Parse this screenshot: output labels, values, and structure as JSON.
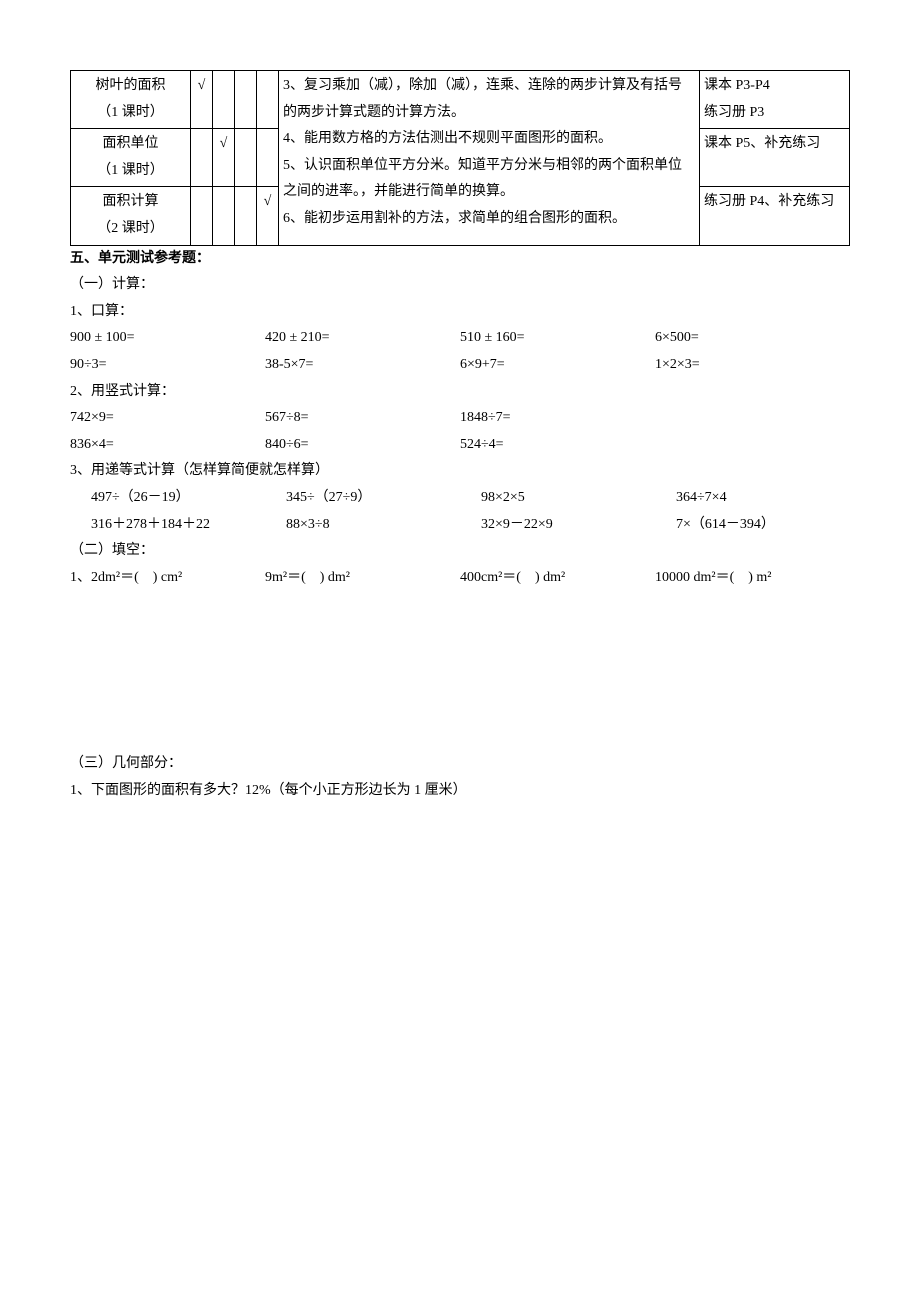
{
  "table": {
    "rows": [
      {
        "lesson": "树叶的面积\n（1 课时）",
        "checks": [
          "√",
          "",
          "",
          ""
        ],
        "ref": "课本 P3-P4\n练习册 P3"
      },
      {
        "lesson": "面积单位\n（1 课时）",
        "checks": [
          "",
          "√",
          "",
          ""
        ],
        "ref": "课本 P5、补充练习"
      },
      {
        "lesson": "面积计算\n（2 课时）",
        "checks": [
          "",
          "",
          "",
          "√"
        ],
        "ref": "练习册 P4、补充练习"
      }
    ],
    "objectives": "3、复习乘加（减），除加（减），连乘、连除的两步计算及有括号的两步计算式题的计算方法。\n4、能用数方格的方法估测出不规则平面图形的面积。\n5、认识面积单位平方分米。知道平方分米与相邻的两个面积单位之间的进率。，并能进行简单的换算。\n6、能初步运用割补的方法，求简单的组合图形的面积。"
  },
  "section5_title": "五、单元测试参考题：",
  "part1": {
    "title": "（一）计算：",
    "p1_label": "1、口算：",
    "p1_row1": [
      "900 ± 100=",
      "420 ± 210=",
      "510 ± 160=",
      "6×500="
    ],
    "p1_row2": [
      "90÷3=",
      "38-5×7=",
      "6×9+7=",
      "1×2×3="
    ],
    "p2_label": "2、用竖式计算：",
    "p2_row1": [
      "742×9=",
      "567÷8=",
      "1848÷7="
    ],
    "p2_row2": [
      "836×4=",
      "840÷6=",
      "524÷4="
    ],
    "p3_label": "3、用递等式计算（怎样算简便就怎样算）",
    "p3_row1": [
      "497÷（26－19）",
      "345÷（27÷9）",
      "98×2×5",
      "364÷7×4"
    ],
    "p3_row2": [
      "316＋278＋184＋22",
      "88×3÷8",
      "32×9－22×9",
      "7×（614－394）"
    ]
  },
  "part2": {
    "title": "（二）填空：",
    "row1": [
      "1、2dm²＝( ) cm²",
      "9m²＝( ) dm²",
      "400cm²＝( ) dm²",
      "10000 dm²＝( ) m²"
    ]
  },
  "part3": {
    "title": "（三）几何部分：",
    "q1": "1、下面图形的面积有多大？12%（每个小正方形边长为 1 厘米）"
  }
}
